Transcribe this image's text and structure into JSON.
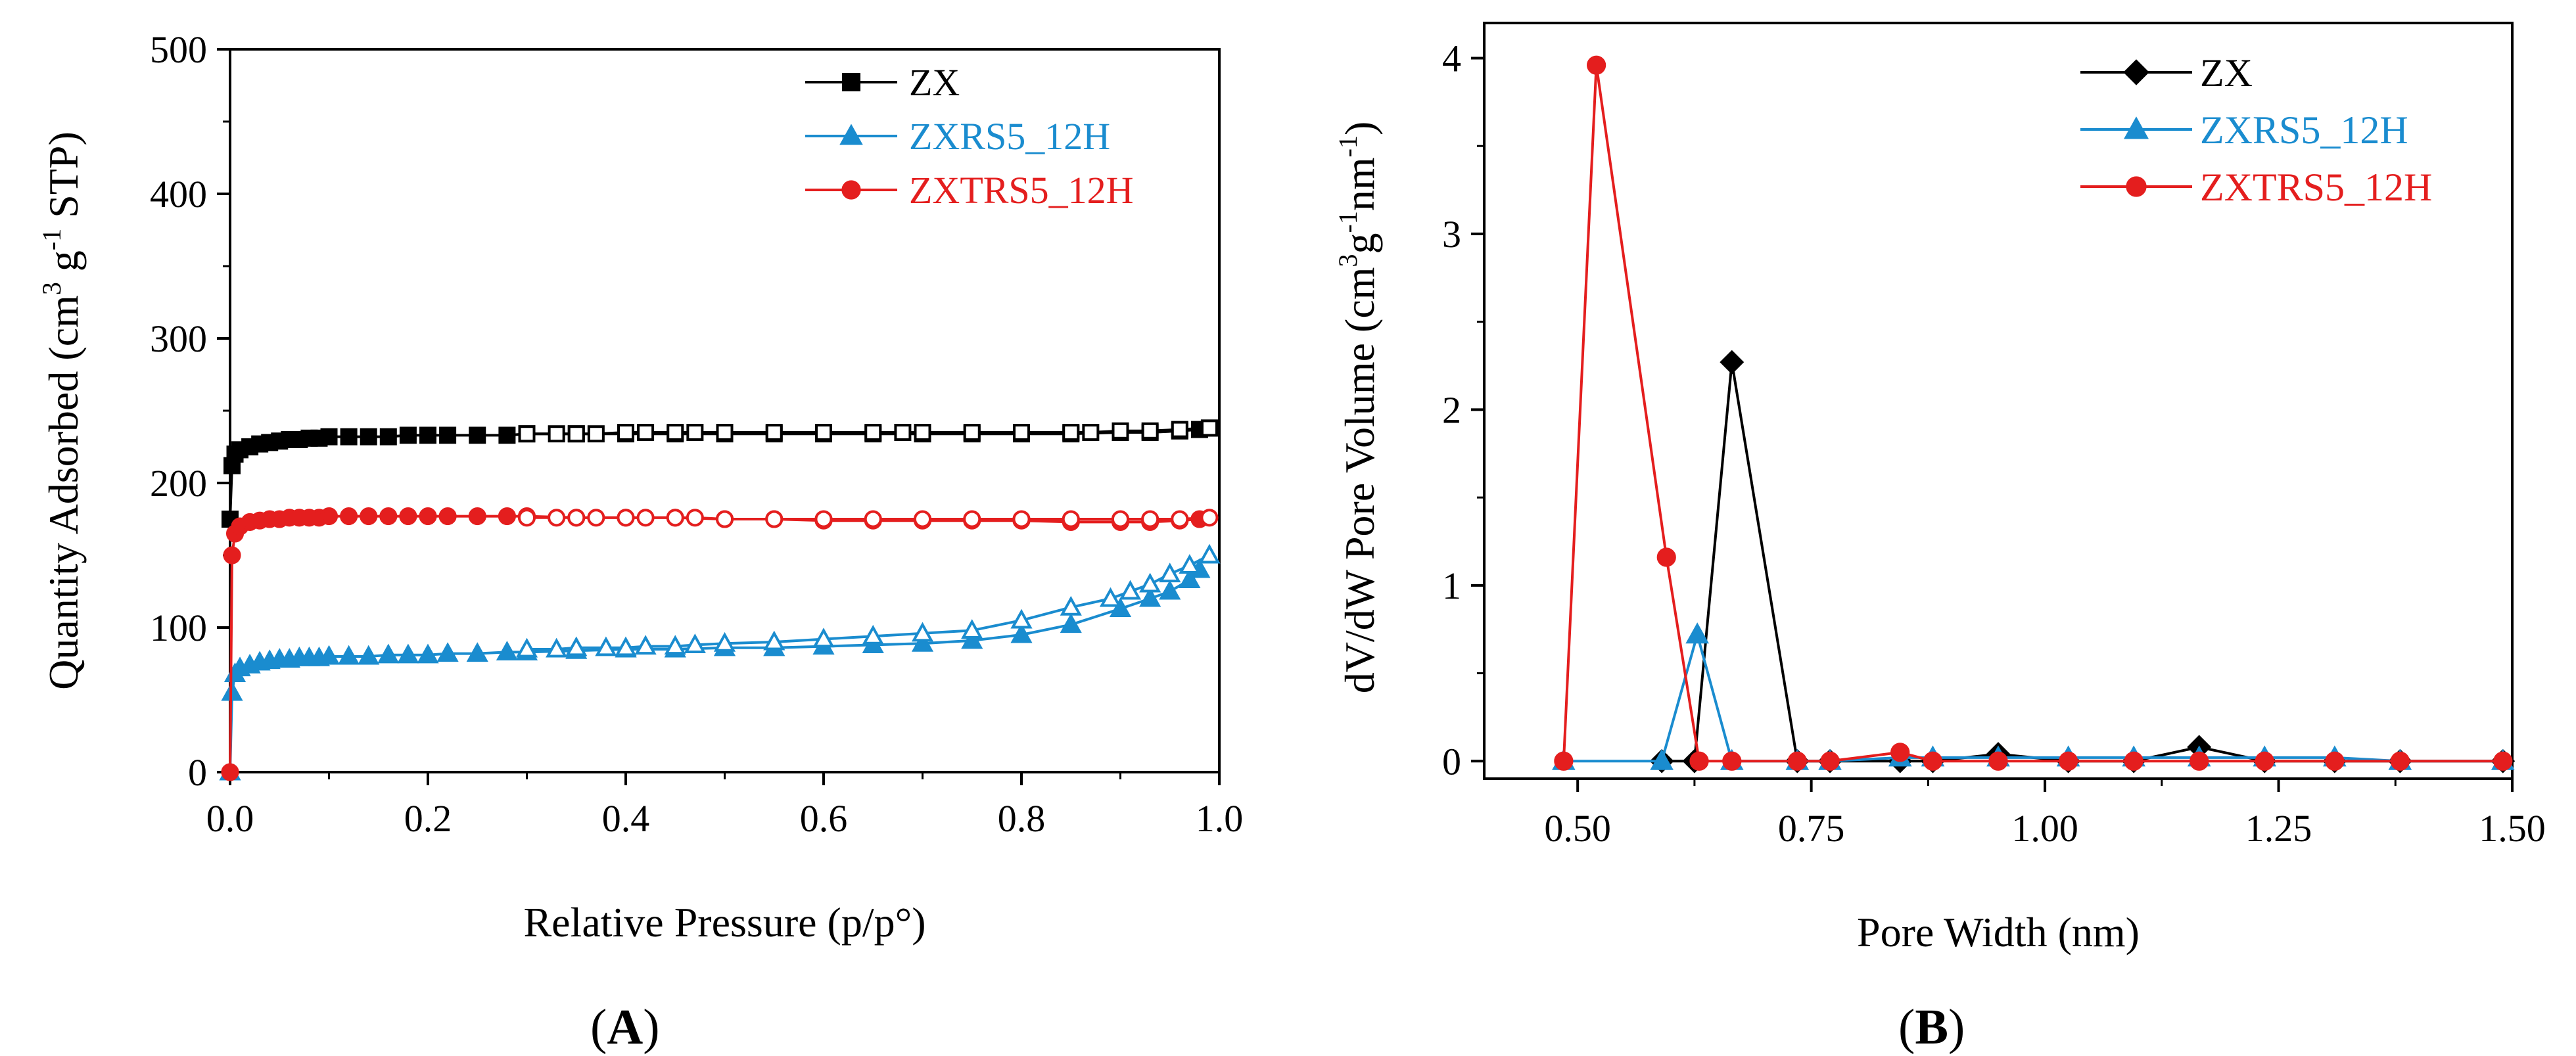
{
  "panels": {
    "A": {
      "open": "(",
      "letter": "A",
      "close": ")"
    },
    "B": {
      "open": "(",
      "letter": "B",
      "close": ")"
    }
  },
  "chart_data": [
    {
      "id": "A",
      "type": "line",
      "title": "",
      "xlabel": "Relative Pressure (p/p°)",
      "ylabel": "Quantity Adsorbed (cm3 g-1 STP)",
      "ylabel_parts": {
        "pre": "Quantity Adsorbed (cm",
        "sup1": "3",
        "mid": " g",
        "sup2": "-1",
        "post": " STP)"
      },
      "xlim": [
        0.0,
        1.0
      ],
      "ylim": [
        0,
        500
      ],
      "xticks": [
        "0.0",
        "0.2",
        "0.4",
        "0.6",
        "0.8",
        "1.0"
      ],
      "yticks": [
        "0",
        "100",
        "200",
        "300",
        "400",
        "500"
      ],
      "grid": false,
      "legend_position": "top-right",
      "series": [
        {
          "name": "ZX",
          "color": "#000000",
          "marker": "square",
          "adsorption": {
            "x": [
              0.0,
              0.002,
              0.005,
              0.01,
              0.02,
              0.03,
              0.04,
              0.05,
              0.06,
              0.07,
              0.08,
              0.09,
              0.1,
              0.12,
              0.14,
              0.16,
              0.18,
              0.2,
              0.22,
              0.25,
              0.28,
              0.3,
              0.35,
              0.4,
              0.45,
              0.5,
              0.55,
              0.6,
              0.65,
              0.7,
              0.75,
              0.8,
              0.85,
              0.9,
              0.93,
              0.96,
              0.98,
              0.99
            ],
            "y": [
              175,
              212,
              220,
              223,
              225,
              227,
              228,
              229,
              230,
              230,
              231,
              231,
              232,
              232,
              232,
              232,
              233,
              233,
              233,
              233,
              233,
              234,
              234,
              234,
              234,
              234,
              234,
              234,
              234,
              234,
              234,
              234,
              234,
              235,
              235,
              236,
              237,
              238
            ]
          },
          "desorption": {
            "x": [
              0.99,
              0.96,
              0.93,
              0.9,
              0.87,
              0.85,
              0.8,
              0.75,
              0.7,
              0.68,
              0.65,
              0.6,
              0.55,
              0.5,
              0.47,
              0.45,
              0.42,
              0.4,
              0.37,
              0.35,
              0.33,
              0.3
            ],
            "y": [
              238,
              237,
              236,
              236,
              235,
              235,
              235,
              235,
              235,
              235,
              235,
              235,
              235,
              235,
              235,
              235,
              235,
              235,
              234,
              234,
              234,
              234
            ]
          }
        },
        {
          "name": "ZXRS5_12H",
          "color": "#1a8ccf",
          "marker": "triangle",
          "adsorption": {
            "x": [
              0.0,
              0.002,
              0.005,
              0.01,
              0.02,
              0.03,
              0.04,
              0.05,
              0.06,
              0.07,
              0.08,
              0.09,
              0.1,
              0.12,
              0.14,
              0.16,
              0.18,
              0.2,
              0.22,
              0.25,
              0.28,
              0.3,
              0.35,
              0.4,
              0.45,
              0.5,
              0.55,
              0.6,
              0.65,
              0.7,
              0.75,
              0.8,
              0.85,
              0.9,
              0.93,
              0.95,
              0.97,
              0.98
            ],
            "y": [
              0,
              55,
              68,
              72,
              74,
              76,
              77,
              78,
              78,
              79,
              79,
              79,
              80,
              80,
              80,
              81,
              81,
              81,
              82,
              82,
              83,
              83,
              84,
              85,
              85,
              86,
              86,
              87,
              88,
              89,
              91,
              95,
              102,
              113,
              120,
              125,
              133,
              140
            ]
          },
          "desorption": {
            "x": [
              0.99,
              0.97,
              0.95,
              0.93,
              0.91,
              0.89,
              0.85,
              0.8,
              0.75,
              0.7,
              0.65,
              0.6,
              0.55,
              0.5,
              0.47,
              0.45,
              0.42,
              0.4,
              0.38,
              0.35,
              0.33,
              0.3
            ],
            "y": [
              150,
              143,
              137,
              130,
              125,
              120,
              114,
              105,
              98,
              96,
              94,
              92,
              90,
              89,
              88,
              87,
              87,
              86,
              86,
              86,
              85,
              85
            ]
          }
        },
        {
          "name": "ZXTRS5_12H",
          "color": "#e41e1e",
          "marker": "circle",
          "adsorption": {
            "x": [
              0.0,
              0.002,
              0.005,
              0.01,
              0.02,
              0.03,
              0.04,
              0.05,
              0.06,
              0.07,
              0.08,
              0.09,
              0.1,
              0.12,
              0.14,
              0.16,
              0.18,
              0.2,
              0.22,
              0.25,
              0.28,
              0.3,
              0.35,
              0.4,
              0.45,
              0.5,
              0.55,
              0.6,
              0.65,
              0.7,
              0.75,
              0.8,
              0.85,
              0.9,
              0.93,
              0.96,
              0.98
            ],
            "y": [
              0,
              150,
              165,
              170,
              173,
              174,
              175,
              175,
              176,
              176,
              176,
              176,
              177,
              177,
              177,
              177,
              177,
              177,
              177,
              177,
              177,
              177,
              176,
              176,
              176,
              175,
              175,
              174,
              174,
              174,
              174,
              174,
              173,
              173,
              173,
              174,
              175
            ]
          },
          "desorption": {
            "x": [
              0.99,
              0.96,
              0.93,
              0.9,
              0.85,
              0.8,
              0.75,
              0.7,
              0.65,
              0.6,
              0.55,
              0.5,
              0.47,
              0.45,
              0.42,
              0.4,
              0.37,
              0.35,
              0.33,
              0.3
            ],
            "y": [
              176,
              175,
              175,
              175,
              175,
              175,
              175,
              175,
              175,
              175,
              175,
              175,
              176,
              176,
              176,
              176,
              176,
              176,
              176,
              176
            ]
          }
        }
      ]
    },
    {
      "id": "B",
      "type": "line",
      "title": "",
      "xlabel": "Pore Width (nm)",
      "ylabel": "dV/dW Pore Volume (cm3g-1nm-1)",
      "ylabel_parts": {
        "pre": "dV/dW Pore Volume (cm",
        "sup1": "3",
        "mid": "g",
        "sup2": "-1",
        "mid2": "nm",
        "sup3": "-1",
        "post": ")"
      },
      "xlim": [
        0.4,
        1.5
      ],
      "ylim": [
        -0.1,
        4.2
      ],
      "xticks": [
        "0.50",
        "0.75",
        "1.00",
        "1.25",
        "1.50"
      ],
      "yticks": [
        "0",
        "1",
        "2",
        "3",
        "4"
      ],
      "grid": false,
      "legend_position": "top-right",
      "series": [
        {
          "name": "ZX",
          "color": "#000000",
          "marker": "diamond",
          "x": [
            0.59,
            0.625,
            0.665,
            0.735,
            0.77,
            0.845,
            0.88,
            0.95,
            1.025,
            1.095,
            1.165,
            1.235,
            1.31,
            1.38,
            1.49
          ],
          "y": [
            0,
            0,
            2.27,
            0,
            0,
            0,
            0,
            0.04,
            0,
            0,
            0.08,
            0,
            0,
            0,
            0
          ]
        },
        {
          "name": "ZXRS5_12H",
          "color": "#1a8ccf",
          "marker": "triangle",
          "x": [
            0.485,
            0.59,
            0.628,
            0.665,
            0.735,
            0.77,
            0.845,
            0.88,
            0.95,
            1.025,
            1.095,
            1.165,
            1.235,
            1.31,
            1.38,
            1.49
          ],
          "y": [
            0,
            0,
            0.72,
            0,
            0,
            0,
            0.02,
            0.02,
            0.02,
            0.02,
            0.02,
            0.02,
            0.02,
            0.02,
            0,
            0
          ]
        },
        {
          "name": "ZXTRS5_12H",
          "color": "#e41e1e",
          "marker": "circle",
          "x": [
            0.485,
            0.52,
            0.595,
            0.63,
            0.665,
            0.735,
            0.77,
            0.845,
            0.88,
            0.95,
            1.025,
            1.095,
            1.165,
            1.235,
            1.31,
            1.38,
            1.49
          ],
          "y": [
            0,
            3.96,
            1.16,
            0,
            0,
            0,
            0,
            0.05,
            0,
            0,
            0,
            0,
            0,
            0,
            0,
            0,
            0
          ]
        }
      ]
    }
  ]
}
